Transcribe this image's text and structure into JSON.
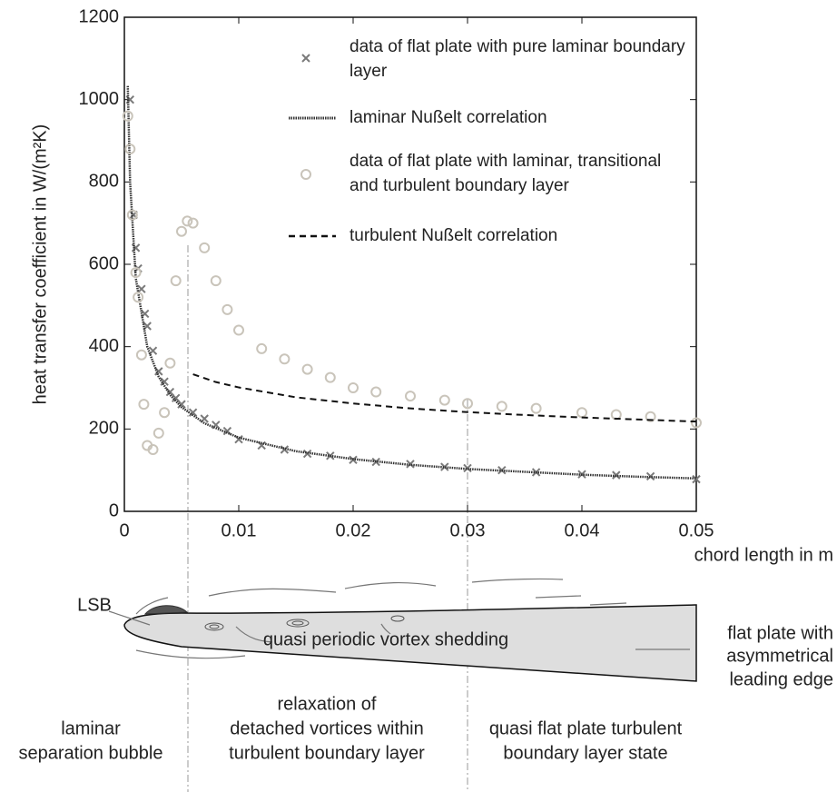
{
  "chart_data": {
    "type": "scatter",
    "xlabel": "chord length in m",
    "ylabel": "heat transfer coefficient in W/(m²K)",
    "xlim": [
      0,
      0.05
    ],
    "xticks": [
      0,
      0.01,
      0.02,
      0.03,
      0.04,
      0.05
    ],
    "ylim": [
      0,
      1200
    ],
    "yticks": [
      0,
      200,
      400,
      600,
      800,
      1000,
      1200
    ],
    "grid": false,
    "series": [
      {
        "name": "data of flat plate with pure laminar boundary layer",
        "mode": "markers",
        "marker": "x",
        "color": "#7a7a7a",
        "x": [
          0.0005,
          0.0008,
          0.001,
          0.0012,
          0.0015,
          0.0018,
          0.002,
          0.0025,
          0.003,
          0.0035,
          0.004,
          0.0045,
          0.005,
          0.006,
          0.007,
          0.008,
          0.009,
          0.01,
          0.012,
          0.014,
          0.016,
          0.018,
          0.02,
          0.022,
          0.025,
          0.028,
          0.03,
          0.033,
          0.036,
          0.04,
          0.043,
          0.046,
          0.05
        ],
        "values": [
          1000,
          720,
          640,
          590,
          540,
          480,
          450,
          390,
          340,
          315,
          290,
          275,
          260,
          240,
          225,
          210,
          195,
          175,
          160,
          150,
          140,
          135,
          125,
          120,
          115,
          108,
          105,
          100,
          95,
          90,
          88,
          85,
          78
        ]
      },
      {
        "name": "laminar Nußelt correlation",
        "mode": "line",
        "dash": "dotted",
        "color": "#333333",
        "x": [
          0.0003,
          0.0005,
          0.001,
          0.002,
          0.003,
          0.004,
          0.005,
          0.007,
          0.01,
          0.015,
          0.02,
          0.025,
          0.03,
          0.035,
          0.04,
          0.045,
          0.05
        ],
        "values": [
          1033,
          800,
          566,
          400,
          327,
          283,
          253,
          214,
          179,
          146,
          127,
          113,
          103,
          96,
          89,
          84,
          80
        ]
      },
      {
        "name": "data of flat plate with laminar, tran­sitional and turbulent boundary layer",
        "mode": "markers",
        "marker": "circle",
        "color": "#c9c4ba",
        "x": [
          0.0003,
          0.0005,
          0.0007,
          0.001,
          0.0012,
          0.0015,
          0.0017,
          0.002,
          0.0025,
          0.003,
          0.0035,
          0.004,
          0.0045,
          0.005,
          0.0055,
          0.006,
          0.007,
          0.008,
          0.009,
          0.01,
          0.012,
          0.014,
          0.016,
          0.018,
          0.02,
          0.022,
          0.025,
          0.028,
          0.03,
          0.033,
          0.036,
          0.04,
          0.043,
          0.046,
          0.05
        ],
        "values": [
          960,
          880,
          720,
          580,
          520,
          380,
          260,
          160,
          150,
          190,
          240,
          360,
          560,
          680,
          705,
          700,
          640,
          560,
          490,
          440,
          395,
          370,
          345,
          325,
          300,
          290,
          280,
          270,
          262,
          255,
          250,
          240,
          235,
          230,
          215
        ]
      },
      {
        "name": "turbulent Nußelt correlation",
        "mode": "line",
        "dash": "dashed",
        "color": "#111111",
        "x": [
          0.006,
          0.008,
          0.01,
          0.015,
          0.02,
          0.025,
          0.03,
          0.035,
          0.04,
          0.045,
          0.05
        ],
        "values": [
          333,
          314,
          301,
          277,
          262,
          250,
          241,
          234,
          228,
          223,
          218
        ]
      }
    ]
  },
  "diagram": {
    "lsb": "LSB",
    "vortex": "quasi periodic vortex shedding",
    "plate": [
      "flat plate with",
      "asymmetrical",
      "leading edge"
    ],
    "zone1": [
      "laminar",
      "separation bubble"
    ],
    "zone2": [
      "relaxation of",
      "detached vortices within",
      "turbulent boundary layer"
    ],
    "zone3": [
      "quasi flat plate turbulent",
      "boundary layer state"
    ]
  }
}
